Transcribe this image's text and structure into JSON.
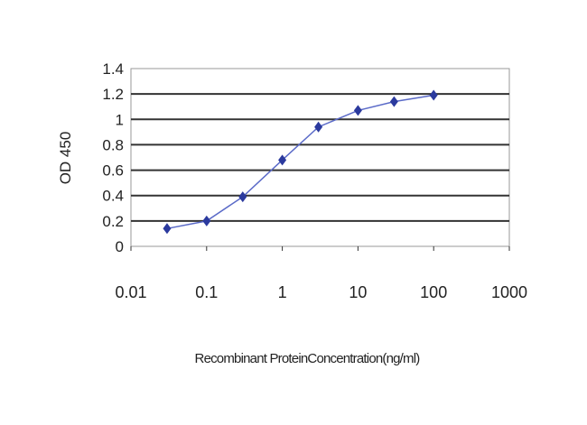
{
  "chart_data": {
    "type": "line",
    "title": "",
    "xlabel": "Recombinant ProteinConcentration(ng/ml)",
    "ylabel": "OD 450",
    "xscale": "log",
    "xlim": [
      0.01,
      1000
    ],
    "ylim": [
      0,
      1.4
    ],
    "xticks": [
      "0.01",
      "0.1",
      "1",
      "10",
      "100",
      "1000"
    ],
    "yticks": [
      "0",
      "0.2",
      "0.4",
      "0.6",
      "0.8",
      "1",
      "1.2",
      "1.4"
    ],
    "grid": true,
    "series": [
      {
        "x": [
          0.03,
          0.1,
          0.3,
          1,
          3,
          10,
          30,
          100
        ],
        "y": [
          0.14,
          0.2,
          0.39,
          0.68,
          0.94,
          1.07,
          1.14,
          1.19
        ],
        "color": "#2b3a9e",
        "marker": "diamond"
      }
    ]
  }
}
